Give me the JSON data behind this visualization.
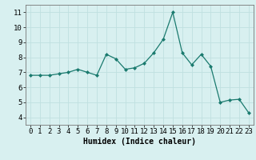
{
  "x": [
    0,
    1,
    2,
    3,
    4,
    5,
    6,
    7,
    8,
    9,
    10,
    11,
    12,
    13,
    14,
    15,
    16,
    17,
    18,
    19,
    20,
    21,
    22,
    23
  ],
  "y": [
    6.8,
    6.8,
    6.8,
    6.9,
    7.0,
    7.2,
    7.0,
    6.8,
    8.2,
    7.9,
    7.2,
    7.3,
    7.6,
    8.3,
    9.2,
    11.0,
    8.3,
    7.5,
    8.2,
    7.4,
    5.0,
    5.15,
    5.2,
    4.3
  ],
  "line_color": "#1a7a6e",
  "marker_color": "#1a7a6e",
  "bg_color": "#d8f0f0",
  "grid_color": "#c0e0e0",
  "xlabel": "Humidex (Indice chaleur)",
  "xlim": [
    -0.5,
    23.5
  ],
  "ylim": [
    3.5,
    11.5
  ],
  "yticks": [
    4,
    5,
    6,
    7,
    8,
    9,
    10,
    11
  ],
  "xticks": [
    0,
    1,
    2,
    3,
    4,
    5,
    6,
    7,
    8,
    9,
    10,
    11,
    12,
    13,
    14,
    15,
    16,
    17,
    18,
    19,
    20,
    21,
    22,
    23
  ],
  "label_fontsize": 7,
  "tick_fontsize": 6.5
}
